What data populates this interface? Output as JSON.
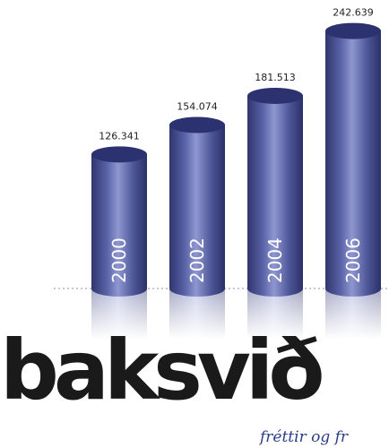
{
  "chart_data": {
    "type": "bar",
    "categories": [
      "2000",
      "2002",
      "2004",
      "2006"
    ],
    "values": [
      126341,
      154074,
      181513,
      242639
    ],
    "value_labels": [
      "126.341",
      "154.074",
      "181.513",
      "242.639"
    ],
    "title": "",
    "xlabel": "",
    "ylabel": "",
    "ylim": [
      0,
      260000
    ],
    "grid": false,
    "legend": "none",
    "bar_color": "#4a5296"
  },
  "brand": {
    "name": "baksvið",
    "tagline": "fréttir og fr"
  },
  "colors": {
    "brand_text": "#1a1a1a",
    "tagline": "#2a3c8c",
    "bar_dark": "#2f356e",
    "bar_mid": "#5a63a8",
    "bar_light": "#8f97d0"
  }
}
